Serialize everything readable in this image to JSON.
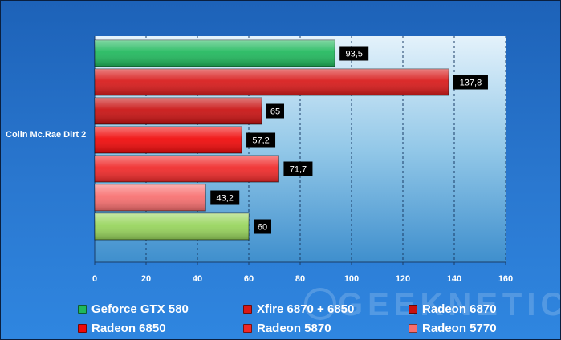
{
  "chart_data": {
    "type": "bar",
    "orientation": "horizontal",
    "categories": [
      "Colin Mc.Rae Dirt 2"
    ],
    "series": [
      {
        "name": "Geforce GTX 580",
        "values": [
          93.5
        ],
        "value_label": "93,5",
        "color": "#1fb85c"
      },
      {
        "name": "Xfire 6870 + 6850",
        "values": [
          137.8
        ],
        "value_label": "137,8",
        "color": "#d81818"
      },
      {
        "name": "Radeon 6870",
        "values": [
          65
        ],
        "value_label": "65",
        "color": "#c81010"
      },
      {
        "name": "Radeon 6850",
        "values": [
          57.2
        ],
        "value_label": "57,2",
        "color": "#f00808"
      },
      {
        "name": "Radeon 5870",
        "values": [
          71.7
        ],
        "value_label": "71,7",
        "color": "#f02828"
      },
      {
        "name": "Radeon 5770",
        "values": [
          43.2
        ],
        "value_label": "43,2",
        "color": "#f86e6e"
      },
      {
        "name": "",
        "values": [
          60
        ],
        "value_label": "60",
        "color": "#96d45a"
      }
    ],
    "xlim": [
      0,
      160
    ],
    "x_ticks": [
      "0",
      "20",
      "40",
      "60",
      "80",
      "100",
      "120",
      "140",
      "160"
    ],
    "grid": true,
    "legend_position": "bottom"
  },
  "watermark": "GEEKNETIC"
}
